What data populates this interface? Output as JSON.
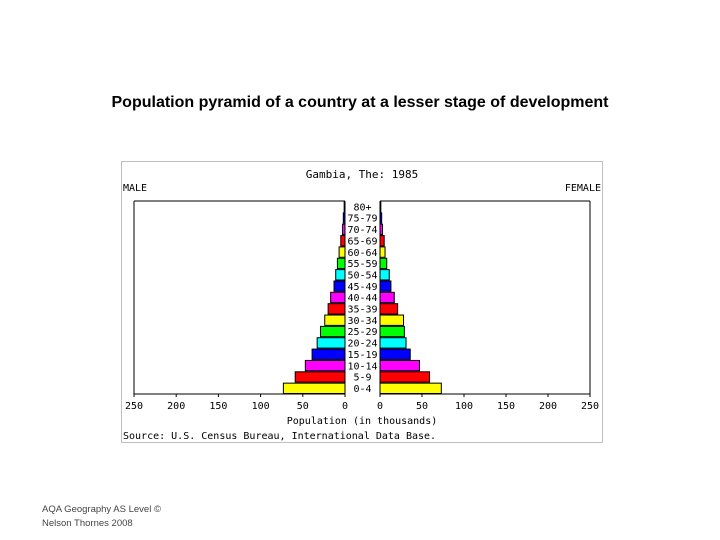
{
  "slide": {
    "title": "Population pyramid of a country at a lesser stage of development"
  },
  "footer": {
    "line1": "AQA Geography AS Level  ©",
    "line2": "Nelson Thornes 2008"
  },
  "chart_data": {
    "type": "bar",
    "orientation": "horizontal-pyramid",
    "title": "Gambia, The: 1985",
    "left_label": "MALE",
    "right_label": "FEMALE",
    "xlabel": "Population (in thousands)",
    "source": "Source: U.S. Census Bureau, International Data Base.",
    "xlim": [
      0,
      250
    ],
    "left_ticks": [
      "250",
      "200",
      "150",
      "100",
      "50",
      "0"
    ],
    "right_ticks": [
      "0",
      "50",
      "100",
      "150",
      "200",
      "250"
    ],
    "categories": [
      "0-4",
      "5-9",
      "10-14",
      "15-19",
      "20-24",
      "25-29",
      "30-34",
      "35-39",
      "40-44",
      "45-49",
      "50-54",
      "55-59",
      "60-64",
      "65-69",
      "70-74",
      "75-79",
      "80+"
    ],
    "colors": [
      "#ffff00",
      "#ff0000",
      "#ff00ff",
      "#0000ff",
      "#00ffff",
      "#00ff00",
      "#ffff00",
      "#ff0000",
      "#ff00ff",
      "#0000ff",
      "#00ffff",
      "#00ff00",
      "#ffff00",
      "#ff0000",
      "#ff00ff",
      "#0000ff",
      "#00ffff"
    ],
    "series": [
      {
        "name": "MALE",
        "values": [
          73,
          59,
          47,
          39,
          33,
          29,
          24,
          20,
          17,
          13,
          11,
          9,
          7,
          5,
          3,
          2,
          1
        ]
      },
      {
        "name": "FEMALE",
        "values": [
          73,
          59,
          47,
          36,
          31,
          29,
          28,
          21,
          17,
          13,
          11,
          8,
          6,
          5,
          3,
          2,
          1
        ]
      }
    ]
  }
}
